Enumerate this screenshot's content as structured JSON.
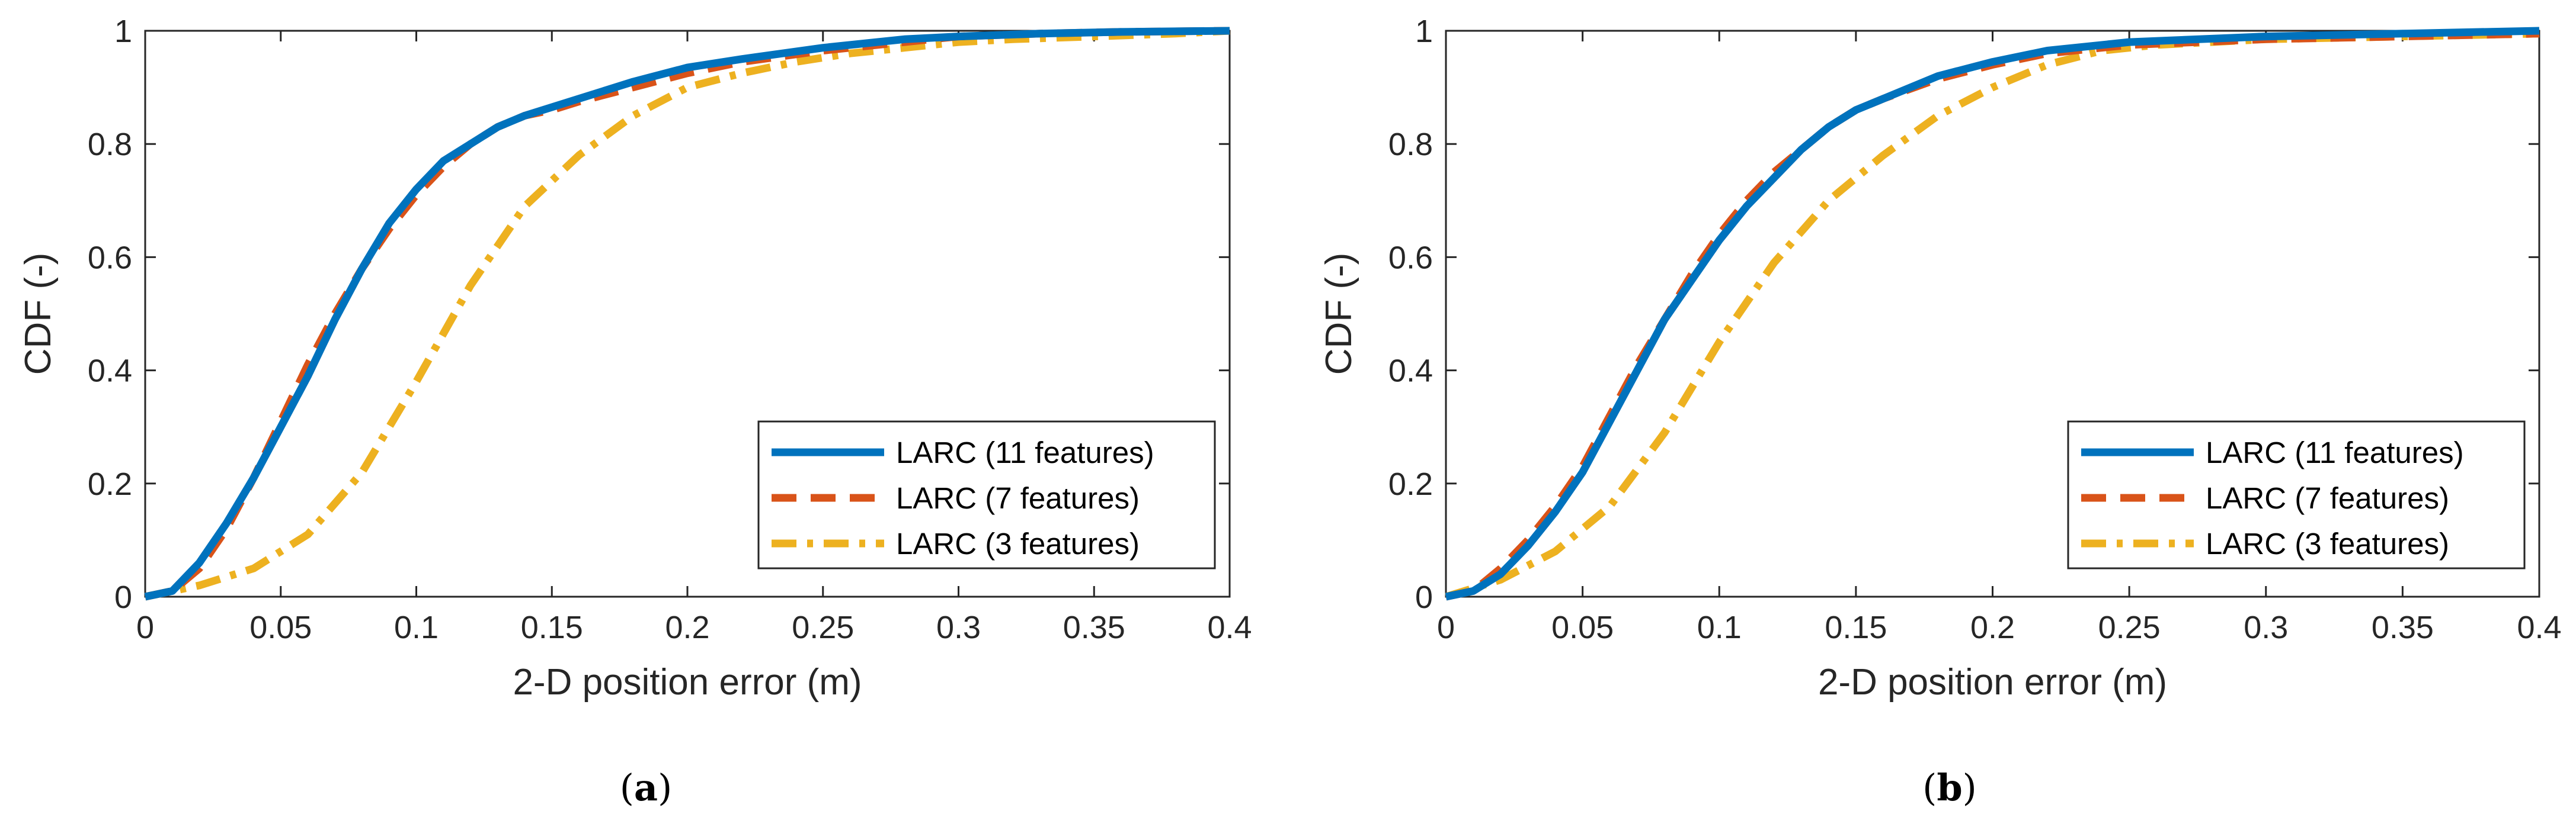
{
  "chart_data": [
    {
      "type": "line",
      "caption_letter": "a",
      "xlabel": "2-D position error (m)",
      "ylabel": "CDF (-)",
      "xlim": [
        0,
        0.4
      ],
      "ylim": [
        0,
        1
      ],
      "xticks": [
        "0",
        "0.05",
        "0.1",
        "0.15",
        "0.2",
        "0.25",
        "0.3",
        "0.35",
        "0.4"
      ],
      "yticks": [
        "0",
        "0.2",
        "0.4",
        "0.6",
        "0.8",
        "1"
      ],
      "legend_position": "bottom-right",
      "series": [
        {
          "name": "LARC (11 features)",
          "color": "#0072BD",
          "style": "solid",
          "x": [
            0,
            0.01,
            0.02,
            0.03,
            0.04,
            0.05,
            0.06,
            0.07,
            0.08,
            0.09,
            0.1,
            0.11,
            0.12,
            0.13,
            0.14,
            0.15,
            0.16,
            0.18,
            0.2,
            0.22,
            0.25,
            0.28,
            0.3,
            0.33,
            0.36,
            0.4
          ],
          "y": [
            0,
            0.01,
            0.06,
            0.13,
            0.21,
            0.3,
            0.39,
            0.49,
            0.58,
            0.66,
            0.72,
            0.77,
            0.8,
            0.83,
            0.85,
            0.865,
            0.88,
            0.91,
            0.935,
            0.95,
            0.97,
            0.985,
            0.99,
            0.995,
            0.998,
            1
          ]
        },
        {
          "name": "LARC (7 features)",
          "color": "#D95319",
          "style": "dashed",
          "x": [
            0,
            0.01,
            0.02,
            0.03,
            0.04,
            0.05,
            0.06,
            0.07,
            0.08,
            0.09,
            0.1,
            0.11,
            0.12,
            0.13,
            0.14,
            0.15,
            0.16,
            0.18,
            0.2,
            0.22,
            0.25,
            0.28,
            0.3,
            0.33,
            0.36,
            0.4
          ],
          "y": [
            0,
            0.01,
            0.05,
            0.12,
            0.21,
            0.31,
            0.41,
            0.5,
            0.58,
            0.65,
            0.71,
            0.76,
            0.8,
            0.83,
            0.85,
            0.86,
            0.875,
            0.9,
            0.925,
            0.945,
            0.965,
            0.98,
            0.99,
            0.995,
            0.998,
            1
          ]
        },
        {
          "name": "LARC (3 features)",
          "color": "#EDB120",
          "style": "dashdot",
          "x": [
            0,
            0.02,
            0.04,
            0.06,
            0.08,
            0.1,
            0.12,
            0.14,
            0.16,
            0.18,
            0.2,
            0.22,
            0.24,
            0.26,
            0.28,
            0.3,
            0.32,
            0.35,
            0.38,
            0.4
          ],
          "y": [
            0,
            0.02,
            0.05,
            0.11,
            0.22,
            0.38,
            0.55,
            0.69,
            0.78,
            0.85,
            0.9,
            0.925,
            0.945,
            0.96,
            0.97,
            0.98,
            0.985,
            0.99,
            0.995,
            1
          ]
        }
      ]
    },
    {
      "type": "line",
      "caption_letter": "b",
      "xlabel": "2-D position error (m)",
      "ylabel": "CDF (-)",
      "xlim": [
        0,
        0.4
      ],
      "ylim": [
        0,
        1
      ],
      "xticks": [
        "0",
        "0.05",
        "0.1",
        "0.15",
        "0.2",
        "0.25",
        "0.3",
        "0.35",
        "0.4"
      ],
      "yticks": [
        "0",
        "0.2",
        "0.4",
        "0.6",
        "0.8",
        "1"
      ],
      "legend_position": "bottom-right",
      "series": [
        {
          "name": "LARC (11 features)",
          "color": "#0072BD",
          "style": "solid",
          "x": [
            0,
            0.01,
            0.02,
            0.03,
            0.04,
            0.05,
            0.06,
            0.07,
            0.08,
            0.09,
            0.1,
            0.11,
            0.12,
            0.13,
            0.14,
            0.15,
            0.16,
            0.18,
            0.2,
            0.22,
            0.25,
            0.3,
            0.35,
            0.4
          ],
          "y": [
            0,
            0.01,
            0.04,
            0.09,
            0.15,
            0.22,
            0.31,
            0.4,
            0.49,
            0.56,
            0.63,
            0.69,
            0.74,
            0.79,
            0.83,
            0.86,
            0.88,
            0.92,
            0.945,
            0.965,
            0.98,
            0.99,
            0.995,
            1
          ]
        },
        {
          "name": "LARC (7 features)",
          "color": "#D95319",
          "style": "dashed",
          "x": [
            0,
            0.01,
            0.02,
            0.03,
            0.04,
            0.05,
            0.06,
            0.07,
            0.08,
            0.09,
            0.1,
            0.11,
            0.12,
            0.13,
            0.14,
            0.15,
            0.16,
            0.18,
            0.2,
            0.22,
            0.25,
            0.3,
            0.35,
            0.4
          ],
          "y": [
            0,
            0.01,
            0.05,
            0.1,
            0.16,
            0.23,
            0.32,
            0.41,
            0.49,
            0.57,
            0.64,
            0.7,
            0.75,
            0.79,
            0.83,
            0.86,
            0.88,
            0.915,
            0.94,
            0.96,
            0.975,
            0.985,
            0.99,
            0.995
          ]
        },
        {
          "name": "LARC (3 features)",
          "color": "#EDB120",
          "style": "dashdot",
          "x": [
            0,
            0.02,
            0.04,
            0.06,
            0.08,
            0.1,
            0.12,
            0.14,
            0.16,
            0.18,
            0.2,
            0.22,
            0.24,
            0.26,
            0.3,
            0.35,
            0.4
          ],
          "y": [
            0,
            0.03,
            0.08,
            0.16,
            0.29,
            0.45,
            0.59,
            0.7,
            0.78,
            0.85,
            0.9,
            0.94,
            0.965,
            0.975,
            0.985,
            0.99,
            0.995
          ]
        }
      ]
    }
  ]
}
